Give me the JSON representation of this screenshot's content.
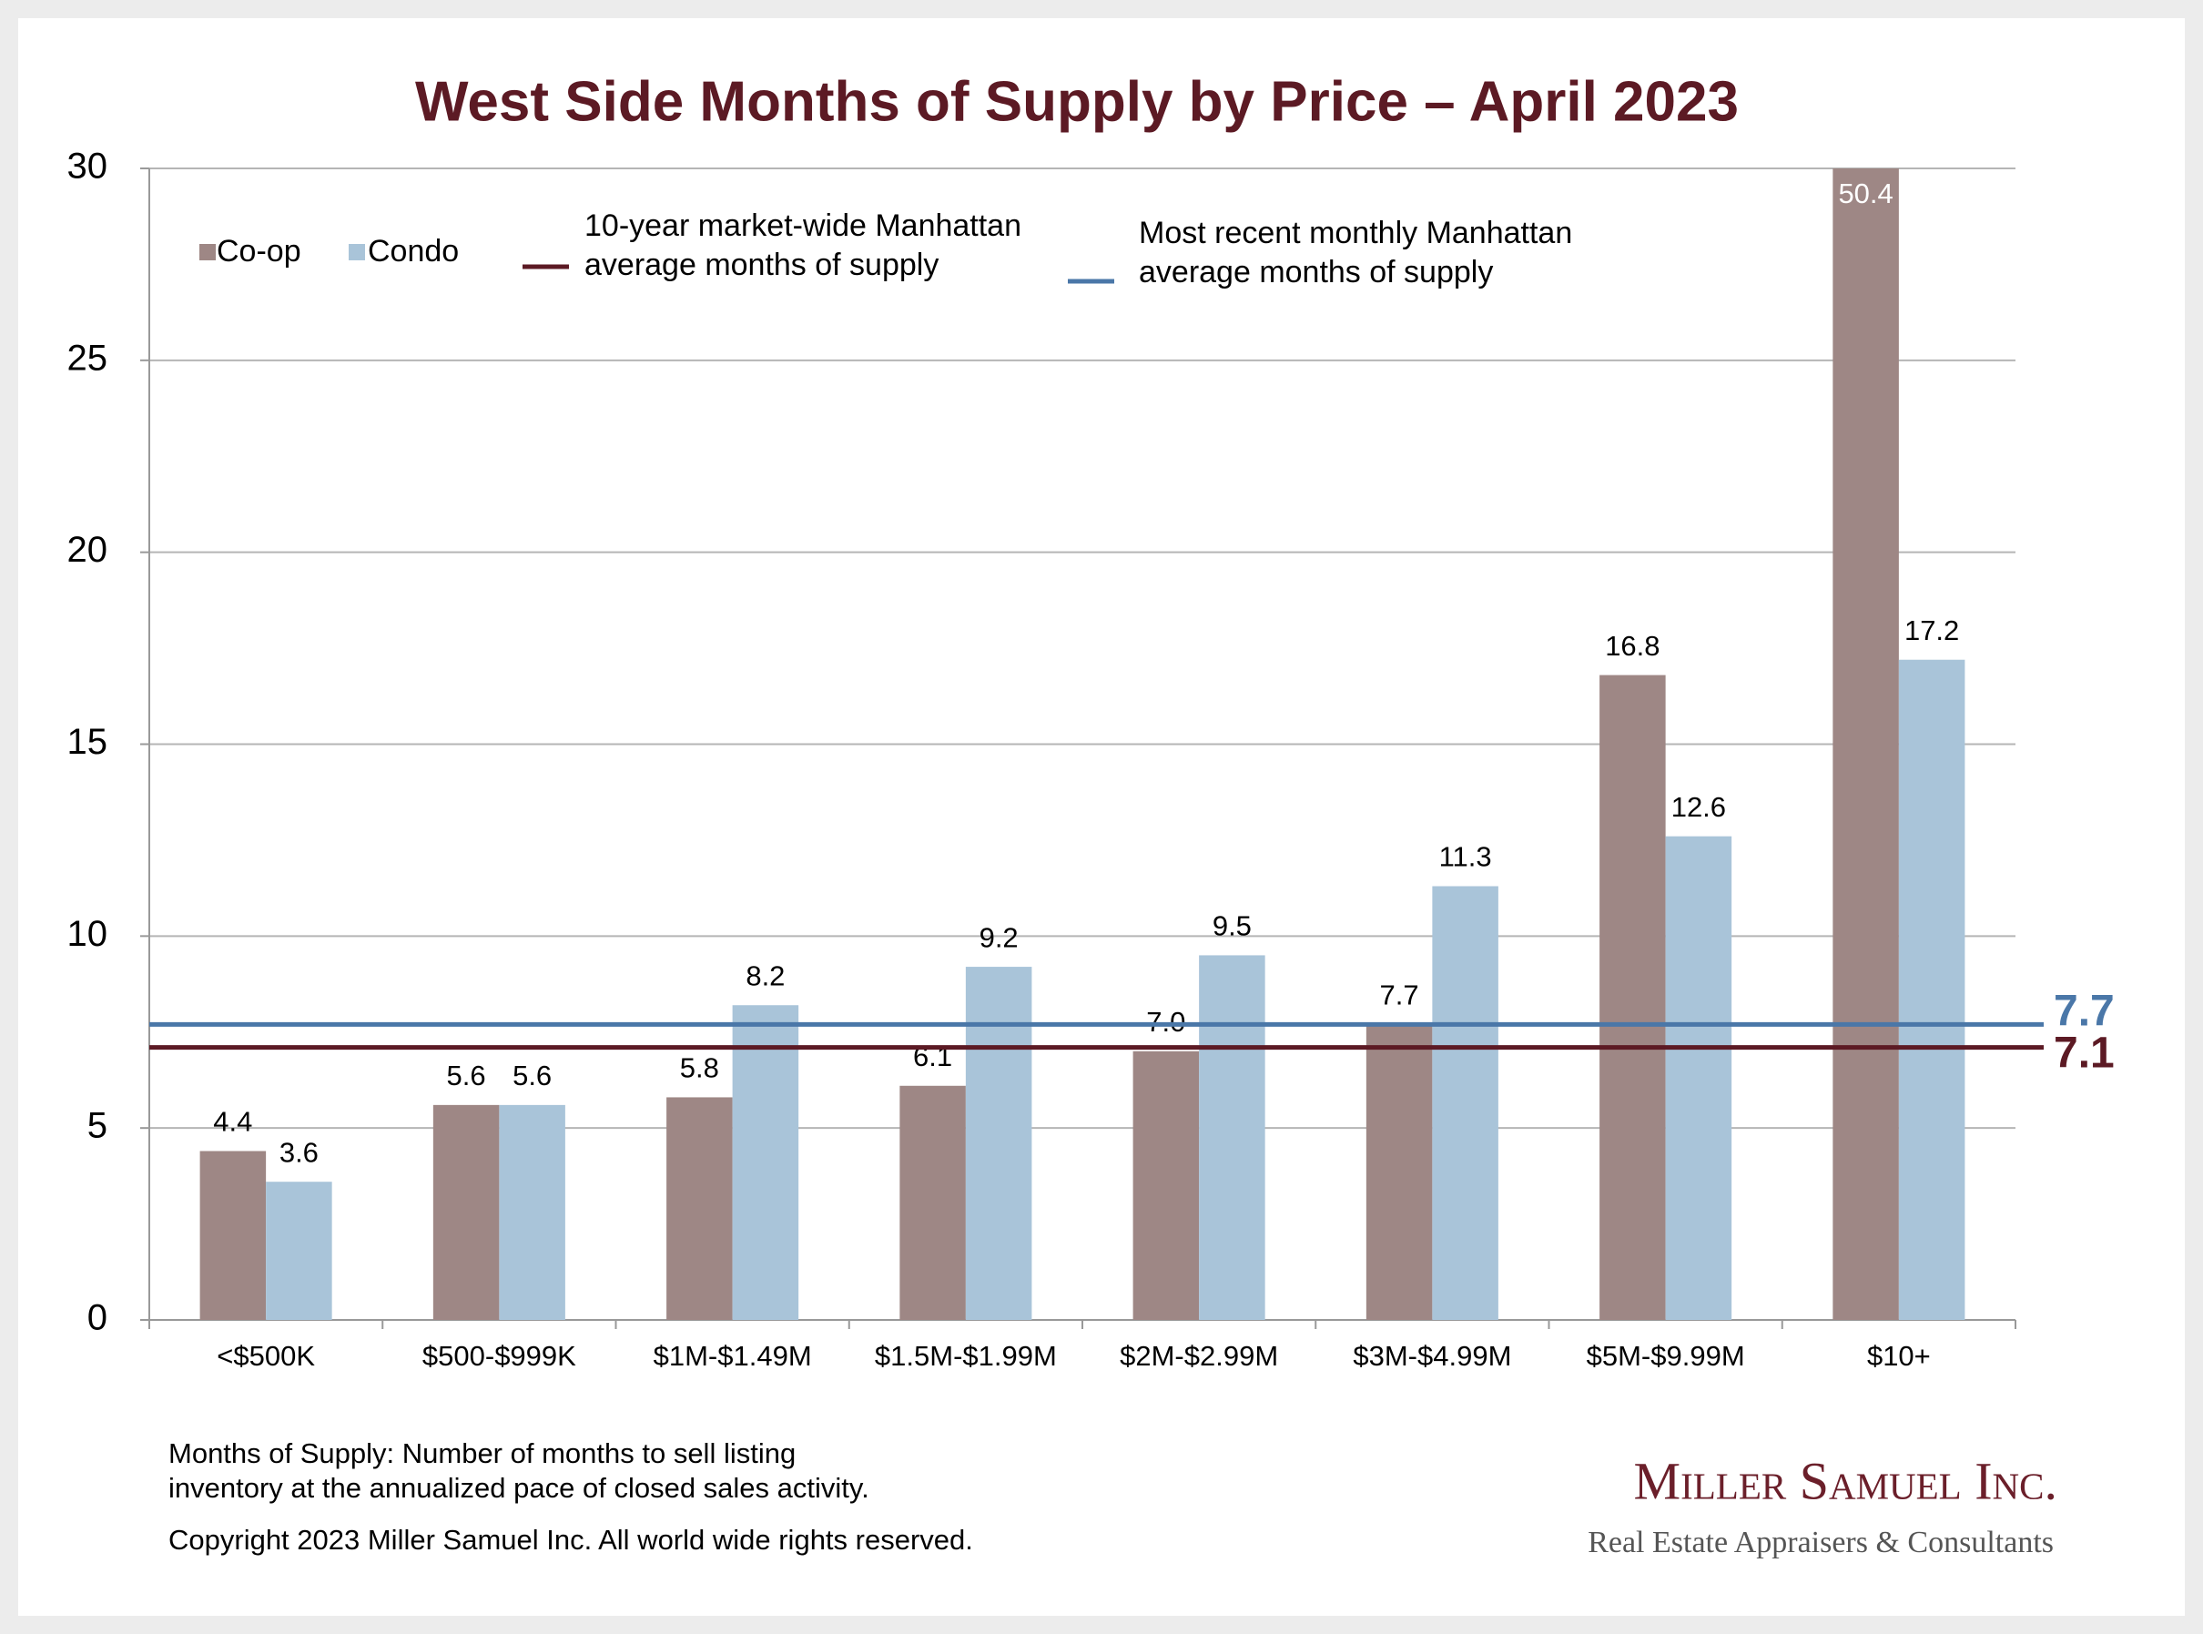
{
  "chart_data": {
    "type": "bar",
    "title": "West Side Months of Supply by Price – April 2023",
    "categories": [
      "<$500K",
      "$500-$999K",
      "$1M-$1.49M",
      "$1.5M-$1.99M",
      "$2M-$2.99M",
      "$3M-$4.99M",
      "$5M-$9.99M",
      "$10+"
    ],
    "series": [
      {
        "name": "Co-op",
        "color": "#9e8785",
        "values": [
          4.4,
          5.6,
          5.8,
          6.1,
          7.0,
          7.7,
          16.8,
          50.4
        ],
        "value_labels": [
          "4.4",
          "5.6",
          "5.8",
          "6.1",
          "7.0",
          "7.7",
          "16.8",
          "50.4"
        ]
      },
      {
        "name": "Condo",
        "color": "#a9c4d9",
        "values": [
          3.6,
          5.6,
          8.2,
          9.2,
          9.5,
          11.3,
          12.6,
          17.2
        ],
        "value_labels": [
          "3.6",
          "5.6",
          "8.2",
          "9.2",
          "9.5",
          "11.3",
          "12.6",
          "17.2"
        ]
      }
    ],
    "reference_lines": [
      {
        "name_lines": [
          "10-year market-wide Manhattan",
          "average months of supply"
        ],
        "value": 7.1,
        "color": "#5c1a24"
      },
      {
        "name_lines": [
          "Most recent monthly Manhattan",
          "average months of supply"
        ],
        "value": 7.7,
        "color": "#4a77a8"
      }
    ],
    "ylim": [
      0,
      30
    ],
    "yticks": [
      0,
      5,
      10,
      15,
      20,
      25,
      30
    ],
    "grid": true,
    "notes": [
      "Months of Supply: Number of months to sell listing",
      "inventory at the annualized pace of closed sales activity.",
      "Copyright 2023 Miller Samuel Inc.  All world wide rights reserved."
    ],
    "logo": {
      "name": "Miller Samuel Inc.",
      "tagline": "Real Estate Appraisers & Consultants"
    }
  }
}
